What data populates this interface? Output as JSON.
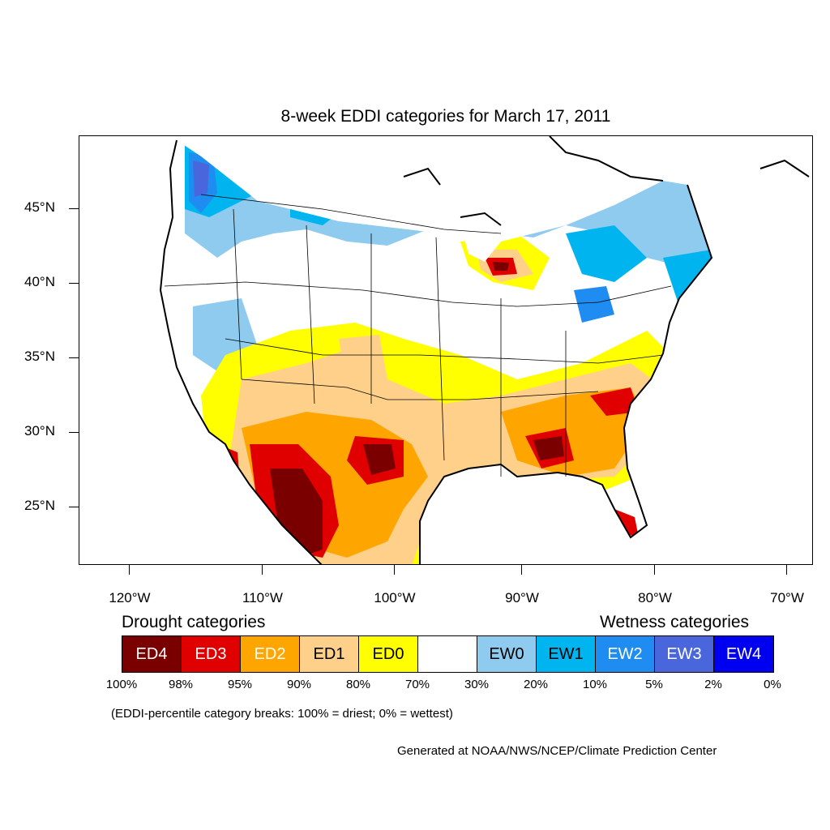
{
  "title": "8-week EDDI categories for March 17, 2011",
  "lat_labels": [
    "45°N",
    "40°N",
    "35°N",
    "30°N",
    "25°N"
  ],
  "lon_labels": [
    "120°W",
    "110°W",
    "100°W",
    "90°W",
    "80°W",
    "70°W"
  ],
  "legend": {
    "drought_heading": "Drought categories",
    "wetness_heading": "Wetness categories",
    "categories": [
      {
        "label": "ED4",
        "color": "#7a0000",
        "text_color": "#ffffff"
      },
      {
        "label": "ED3",
        "color": "#e00000",
        "text_color": "#ffffff"
      },
      {
        "label": "ED2",
        "color": "#ffa500",
        "text_color": "#ffffff"
      },
      {
        "label": "ED1",
        "color": "#ffd08a",
        "text_color": "#000000"
      },
      {
        "label": "ED0",
        "color": "#ffff00",
        "text_color": "#000000"
      },
      {
        "label": "",
        "color": "#ffffff",
        "text_color": "#000000"
      },
      {
        "label": "EW0",
        "color": "#8ecbee",
        "text_color": "#000000"
      },
      {
        "label": "EW1",
        "color": "#00b4f0",
        "text_color": "#000000"
      },
      {
        "label": "EW2",
        "color": "#1e8cf0",
        "text_color": "#ffffff"
      },
      {
        "label": "EW3",
        "color": "#4a66dc",
        "text_color": "#ffffff"
      },
      {
        "label": "EW4",
        "color": "#0000f0",
        "text_color": "#ffffff"
      }
    ],
    "percent_breaks": [
      "100%",
      "98%",
      "95%",
      "90%",
      "80%",
      "70%",
      "30%",
      "20%",
      "10%",
      "5%",
      "2%",
      "0%"
    ]
  },
  "note": "(EDDI-percentile category breaks: 100% = driest; 0% = wettest)",
  "credit": "Generated at NOAA/NWS/NCEP/Climate Prediction Center"
}
